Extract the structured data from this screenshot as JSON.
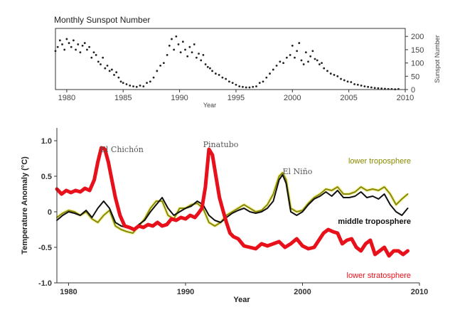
{
  "chart_data": [
    {
      "type": "scatter",
      "title": "Monthly Sunspot Number",
      "xlabel": "Year",
      "ylabel": "Sunspot Number",
      "xlim": [
        1979,
        2010
      ],
      "ylim": [
        0,
        230
      ],
      "x_ticks": [
        1980,
        1985,
        1990,
        1995,
        2000,
        2005,
        2010
      ],
      "y_ticks": [
        0,
        50,
        100,
        150,
        200
      ],
      "y_axis_side": "right",
      "series": [
        {
          "color": "#222222",
          "x": [
            1979.0,
            1979.2,
            1979.4,
            1979.6,
            1979.8,
            1980.0,
            1980.2,
            1980.4,
            1980.6,
            1980.8,
            1981.0,
            1981.2,
            1981.4,
            1981.6,
            1981.8,
            1982.0,
            1982.2,
            1982.4,
            1982.6,
            1982.8,
            1983.0,
            1983.2,
            1983.4,
            1983.6,
            1983.8,
            1984.0,
            1984.2,
            1984.4,
            1984.6,
            1984.8,
            1985.0,
            1985.3,
            1985.6,
            1985.9,
            1986.2,
            1986.5,
            1986.8,
            1987.1,
            1987.4,
            1987.7,
            1988.0,
            1988.3,
            1988.6,
            1988.9,
            1989.1,
            1989.3,
            1989.5,
            1989.7,
            1989.9,
            1990.1,
            1990.3,
            1990.5,
            1990.7,
            1990.9,
            1991.1,
            1991.3,
            1991.5,
            1991.7,
            1991.9,
            1992.1,
            1992.3,
            1992.5,
            1992.7,
            1992.9,
            1993.2,
            1993.5,
            1993.8,
            1994.1,
            1994.4,
            1994.7,
            1995.0,
            1995.3,
            1995.6,
            1995.9,
            1996.2,
            1996.5,
            1996.8,
            1997.1,
            1997.4,
            1997.7,
            1998.0,
            1998.3,
            1998.6,
            1998.9,
            1999.2,
            1999.5,
            1999.8,
            2000.0,
            2000.2,
            2000.4,
            2000.6,
            2000.8,
            2001.0,
            2001.2,
            2001.4,
            2001.6,
            2001.8,
            2002.0,
            2002.2,
            2002.4,
            2002.6,
            2002.8,
            2003.1,
            2003.4,
            2003.7,
            2004.0,
            2004.3,
            2004.6,
            2004.9,
            2005.2,
            2005.5,
            2005.8,
            2006.1,
            2006.4,
            2006.7,
            2007.0,
            2007.3,
            2007.6,
            2007.9,
            2008.2,
            2008.5,
            2008.8,
            2009.1,
            2009.4
          ],
          "y": [
            145,
            160,
            185,
            170,
            150,
            190,
            175,
            160,
            185,
            150,
            170,
            140,
            165,
            175,
            150,
            160,
            120,
            140,
            130,
            105,
            95,
            120,
            80,
            90,
            70,
            75,
            55,
            65,
            45,
            30,
            25,
            20,
            15,
            12,
            10,
            15,
            12,
            25,
            30,
            45,
            70,
            90,
            100,
            130,
            165,
            190,
            150,
            200,
            170,
            140,
            180,
            150,
            125,
            160,
            140,
            170,
            120,
            135,
            110,
            130,
            95,
            85,
            80,
            70,
            60,
            55,
            45,
            40,
            30,
            25,
            18,
            12,
            10,
            8,
            8,
            10,
            12,
            25,
            30,
            45,
            60,
            75,
            90,
            105,
            100,
            120,
            130,
            165,
            120,
            145,
            175,
            110,
            95,
            140,
            105,
            125,
            145,
            115,
            110,
            95,
            100,
            80,
            70,
            60,
            55,
            50,
            40,
            35,
            30,
            28,
            20,
            18,
            15,
            12,
            10,
            8,
            6,
            5,
            4,
            3,
            2,
            2,
            1,
            2
          ]
        }
      ]
    },
    {
      "type": "line",
      "xlabel": "Year",
      "ylabel": "Temperature Anomaly (°C)",
      "xlim": [
        1979,
        2010
      ],
      "ylim": [
        -1.0,
        1.0
      ],
      "x_ticks": [
        1980,
        1990,
        2000,
        2010
      ],
      "y_ticks": [
        -1.0,
        -0.5,
        0,
        0.5,
        1.0
      ],
      "y_tick_labels": [
        "-1.0",
        "-0.5",
        "0",
        "0.5",
        "1.0"
      ],
      "annotations": [
        {
          "text": "El Chichón",
          "x": 1982.7,
          "y": 0.88
        },
        {
          "text": "Pinatubo",
          "x": 1991.5,
          "y": 0.95
        },
        {
          "text": "El Niño",
          "x": 1998.3,
          "y": 0.57
        }
      ],
      "series": [
        {
          "name": "lower troposphere",
          "color": "#8a8a00",
          "band_color": "#ecec80",
          "x": [
            1979.0,
            1979.5,
            1980.0,
            1980.5,
            1981.0,
            1981.5,
            1982.0,
            1982.5,
            1983.0,
            1983.5,
            1984.0,
            1984.5,
            1985.0,
            1985.5,
            1986.0,
            1986.5,
            1987.0,
            1987.5,
            1988.0,
            1988.5,
            1989.0,
            1989.5,
            1990.0,
            1990.5,
            1991.0,
            1991.5,
            1992.0,
            1992.5,
            1993.0,
            1993.5,
            1994.0,
            1994.5,
            1995.0,
            1995.5,
            1996.0,
            1996.5,
            1997.0,
            1997.5,
            1998.0,
            1998.3,
            1998.6,
            1999.0,
            1999.5,
            2000.0,
            2000.5,
            2001.0,
            2001.5,
            2002.0,
            2002.5,
            2003.0,
            2003.5,
            2004.0,
            2004.5,
            2005.0,
            2005.5,
            2006.0,
            2006.5,
            2007.0,
            2007.5,
            2008.0,
            2008.5,
            2009.0
          ],
          "y": [
            -0.08,
            -0.02,
            0.02,
            0.0,
            -0.05,
            0.0,
            -0.1,
            -0.15,
            -0.05,
            0.02,
            -0.2,
            -0.25,
            -0.28,
            -0.3,
            -0.2,
            -0.1,
            0.05,
            0.15,
            0.15,
            -0.05,
            -0.1,
            0.05,
            0.05,
            0.1,
            0.12,
            0.05,
            -0.15,
            -0.2,
            -0.15,
            -0.05,
            0.0,
            0.05,
            0.1,
            0.05,
            0.0,
            0.02,
            0.1,
            0.25,
            0.5,
            0.55,
            0.45,
            0.05,
            0.0,
            0.02,
            0.12,
            0.2,
            0.25,
            0.32,
            0.3,
            0.35,
            0.25,
            0.25,
            0.28,
            0.35,
            0.3,
            0.32,
            0.3,
            0.35,
            0.25,
            0.1,
            0.18,
            0.25
          ]
        },
        {
          "name": "middle troposphere",
          "color": "#111111",
          "x": [
            1979.0,
            1979.5,
            1980.0,
            1980.5,
            1981.0,
            1981.5,
            1982.0,
            1982.5,
            1983.0,
            1983.5,
            1984.0,
            1984.5,
            1985.0,
            1985.5,
            1986.0,
            1986.5,
            1987.0,
            1987.5,
            1988.0,
            1988.5,
            1989.0,
            1989.5,
            1990.0,
            1990.5,
            1991.0,
            1991.5,
            1992.0,
            1992.5,
            1993.0,
            1993.5,
            1994.0,
            1994.5,
            1995.0,
            1995.5,
            1996.0,
            1996.5,
            1997.0,
            1997.5,
            1998.0,
            1998.3,
            1998.6,
            1999.0,
            1999.5,
            2000.0,
            2000.5,
            2001.0,
            2001.5,
            2002.0,
            2002.5,
            2003.0,
            2003.5,
            2004.0,
            2004.5,
            2005.0,
            2005.5,
            2006.0,
            2006.5,
            2007.0,
            2007.5,
            2008.0,
            2008.5,
            2009.0
          ],
          "y": [
            -0.12,
            -0.05,
            0.0,
            -0.02,
            -0.05,
            0.02,
            -0.08,
            0.05,
            0.15,
            0.05,
            -0.15,
            -0.2,
            -0.22,
            -0.25,
            -0.18,
            -0.12,
            0.0,
            0.1,
            0.2,
            0.05,
            -0.05,
            0.0,
            0.05,
            0.08,
            0.15,
            0.1,
            -0.05,
            -0.12,
            -0.15,
            -0.08,
            -0.02,
            0.02,
            0.05,
            0.0,
            -0.02,
            0.0,
            0.05,
            0.15,
            0.45,
            0.52,
            0.4,
            0.0,
            -0.05,
            0.0,
            0.1,
            0.18,
            0.22,
            0.28,
            0.22,
            0.3,
            0.2,
            0.2,
            0.22,
            0.28,
            0.2,
            0.22,
            0.18,
            0.25,
            0.1,
            0.0,
            -0.05,
            0.05
          ]
        },
        {
          "name": "lower stratosphere",
          "color": "#e8101a",
          "band_color": "#d89aa8",
          "x": [
            1979.0,
            1979.4,
            1979.8,
            1980.2,
            1980.6,
            1981.0,
            1981.4,
            1981.8,
            1982.2,
            1982.5,
            1982.8,
            1983.1,
            1983.4,
            1983.7,
            1984.0,
            1984.4,
            1984.8,
            1985.2,
            1985.6,
            1986.0,
            1986.4,
            1986.8,
            1987.2,
            1987.6,
            1988.0,
            1988.4,
            1988.8,
            1989.2,
            1989.6,
            1990.0,
            1990.4,
            1990.8,
            1991.1,
            1991.4,
            1991.7,
            1992.0,
            1992.3,
            1992.6,
            1992.9,
            1993.2,
            1993.5,
            1993.8,
            1994.1,
            1994.5,
            1995.0,
            1995.5,
            1996.0,
            1996.5,
            1997.0,
            1997.5,
            1998.0,
            1998.5,
            1999.0,
            1999.5,
            2000.0,
            2000.5,
            2001.0,
            2001.4,
            2001.8,
            2002.2,
            2002.6,
            2003.0,
            2003.4,
            2003.8,
            2004.2,
            2004.6,
            2005.0,
            2005.4,
            2005.8,
            2006.2,
            2006.6,
            2007.0,
            2007.4,
            2007.8,
            2008.2,
            2008.6,
            2009.0
          ],
          "y": [
            0.32,
            0.25,
            0.3,
            0.27,
            0.3,
            0.28,
            0.33,
            0.3,
            0.45,
            0.7,
            0.9,
            0.88,
            0.7,
            0.45,
            0.2,
            -0.05,
            -0.2,
            -0.22,
            -0.25,
            -0.2,
            -0.22,
            -0.18,
            -0.2,
            -0.15,
            -0.2,
            -0.18,
            -0.1,
            -0.12,
            -0.08,
            -0.1,
            -0.05,
            -0.08,
            -0.02,
            0.05,
            0.35,
            0.88,
            0.8,
            0.5,
            0.2,
            0.02,
            -0.15,
            -0.3,
            -0.35,
            -0.38,
            -0.48,
            -0.5,
            -0.52,
            -0.45,
            -0.48,
            -0.45,
            -0.42,
            -0.5,
            -0.45,
            -0.38,
            -0.48,
            -0.52,
            -0.5,
            -0.4,
            -0.3,
            -0.25,
            -0.28,
            -0.3,
            -0.45,
            -0.4,
            -0.38,
            -0.5,
            -0.55,
            -0.45,
            -0.4,
            -0.6,
            -0.55,
            -0.5,
            -0.62,
            -0.55,
            -0.55,
            -0.6,
            -0.55
          ]
        }
      ]
    }
  ]
}
